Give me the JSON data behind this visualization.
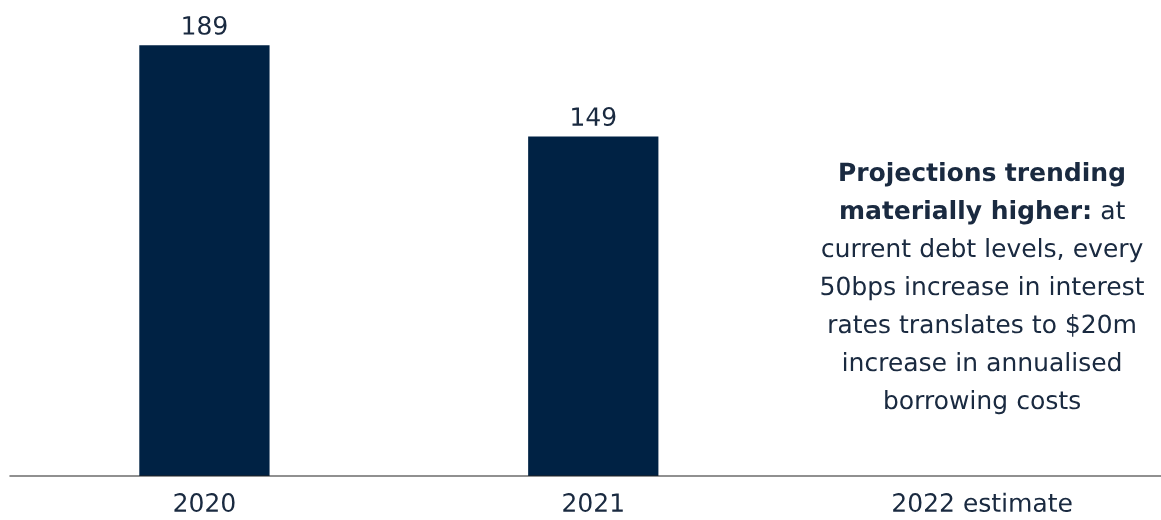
{
  "chart_data": {
    "type": "bar",
    "categories": [
      "2020",
      "2021",
      "2022 estimate"
    ],
    "values": [
      189,
      149,
      null
    ],
    "color": "#002244",
    "data_labels": true,
    "grid": false,
    "legend": false,
    "annotations": [
      "Projections trending materially higher:",
      "at current debt levels, every 50bps increase in interest rates translates to $20m increase in annualised borrowing costs"
    ]
  }
}
